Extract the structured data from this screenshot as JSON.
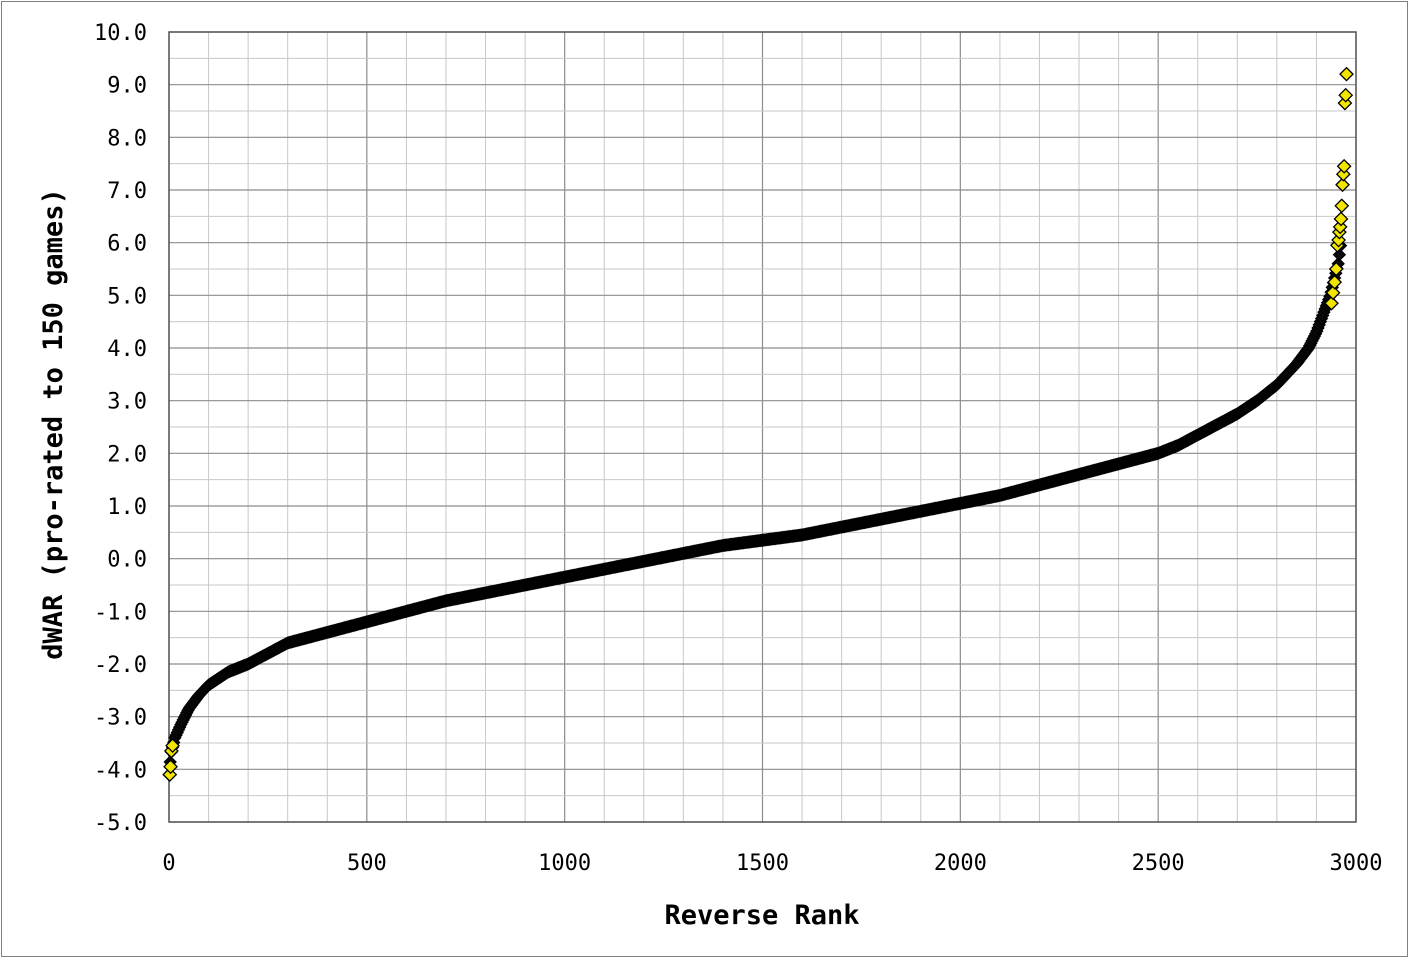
{
  "chart_data": {
    "type": "scatter",
    "title": "",
    "xlabel": "Reverse Rank",
    "ylabel": "dWAR (pro-rated to 150 games)",
    "xlim": [
      0,
      3000
    ],
    "ylim": [
      -5,
      10
    ],
    "x_ticks": [
      "0",
      "500",
      "1000",
      "1500",
      "2000",
      "2500",
      "3000"
    ],
    "y_ticks": [
      "10.0",
      "9.0",
      "8.0",
      "7.0",
      "6.0",
      "5.0",
      "4.0",
      "3.0",
      "2.0",
      "1.0",
      "0.0",
      "-1.0",
      "-2.0",
      "-3.0",
      "-4.0",
      "-5.0"
    ],
    "grid": true,
    "legend": "none",
    "colors": {
      "marker_fill": "#f2e600",
      "marker_edge": "#000000",
      "grid_major": "#8c8c8c",
      "grid_minor": "#c8c8c8"
    },
    "curve_profile": {
      "x": [
        0,
        5,
        15,
        30,
        50,
        75,
        100,
        150,
        200,
        300,
        400,
        500,
        600,
        700,
        800,
        900,
        1000,
        1100,
        1200,
        1300,
        1400,
        1500,
        1600,
        1700,
        1800,
        1900,
        2000,
        2100,
        2200,
        2300,
        2400,
        2500,
        2550,
        2600,
        2650,
        2700,
        2750,
        2800,
        2850,
        2880,
        2900,
        2920,
        2935,
        2945,
        2955,
        2962
      ],
      "y": [
        -4.1,
        -3.7,
        -3.4,
        -3.15,
        -2.85,
        -2.6,
        -2.4,
        -2.15,
        -2.0,
        -1.6,
        -1.4,
        -1.2,
        -1.0,
        -0.8,
        -0.65,
        -0.5,
        -0.35,
        -0.2,
        -0.05,
        0.1,
        0.25,
        0.35,
        0.45,
        0.6,
        0.75,
        0.9,
        1.05,
        1.2,
        1.4,
        1.6,
        1.8,
        2.0,
        2.15,
        2.35,
        2.55,
        2.75,
        3.0,
        3.3,
        3.7,
        4.0,
        4.3,
        4.7,
        5.0,
        5.3,
        5.6,
        6.0
      ]
    },
    "outlier_points": [
      {
        "x": 2,
        "y": -4.1
      },
      {
        "x": 4,
        "y": -3.95
      },
      {
        "x": 6,
        "y": -3.65
      },
      {
        "x": 9,
        "y": -3.55
      },
      {
        "x": 2938,
        "y": 4.85
      },
      {
        "x": 2942,
        "y": 5.05
      },
      {
        "x": 2946,
        "y": 5.25
      },
      {
        "x": 2950,
        "y": 5.5
      },
      {
        "x": 2953,
        "y": 5.95
      },
      {
        "x": 2956,
        "y": 6.05
      },
      {
        "x": 2958,
        "y": 6.2
      },
      {
        "x": 2960,
        "y": 6.3
      },
      {
        "x": 2962,
        "y": 6.45
      },
      {
        "x": 2964,
        "y": 6.7
      },
      {
        "x": 2966,
        "y": 7.1
      },
      {
        "x": 2968,
        "y": 7.3
      },
      {
        "x": 2970,
        "y": 7.45
      },
      {
        "x": 2972,
        "y": 8.65
      },
      {
        "x": 2974,
        "y": 8.8
      },
      {
        "x": 2976,
        "y": 9.2
      }
    ]
  }
}
